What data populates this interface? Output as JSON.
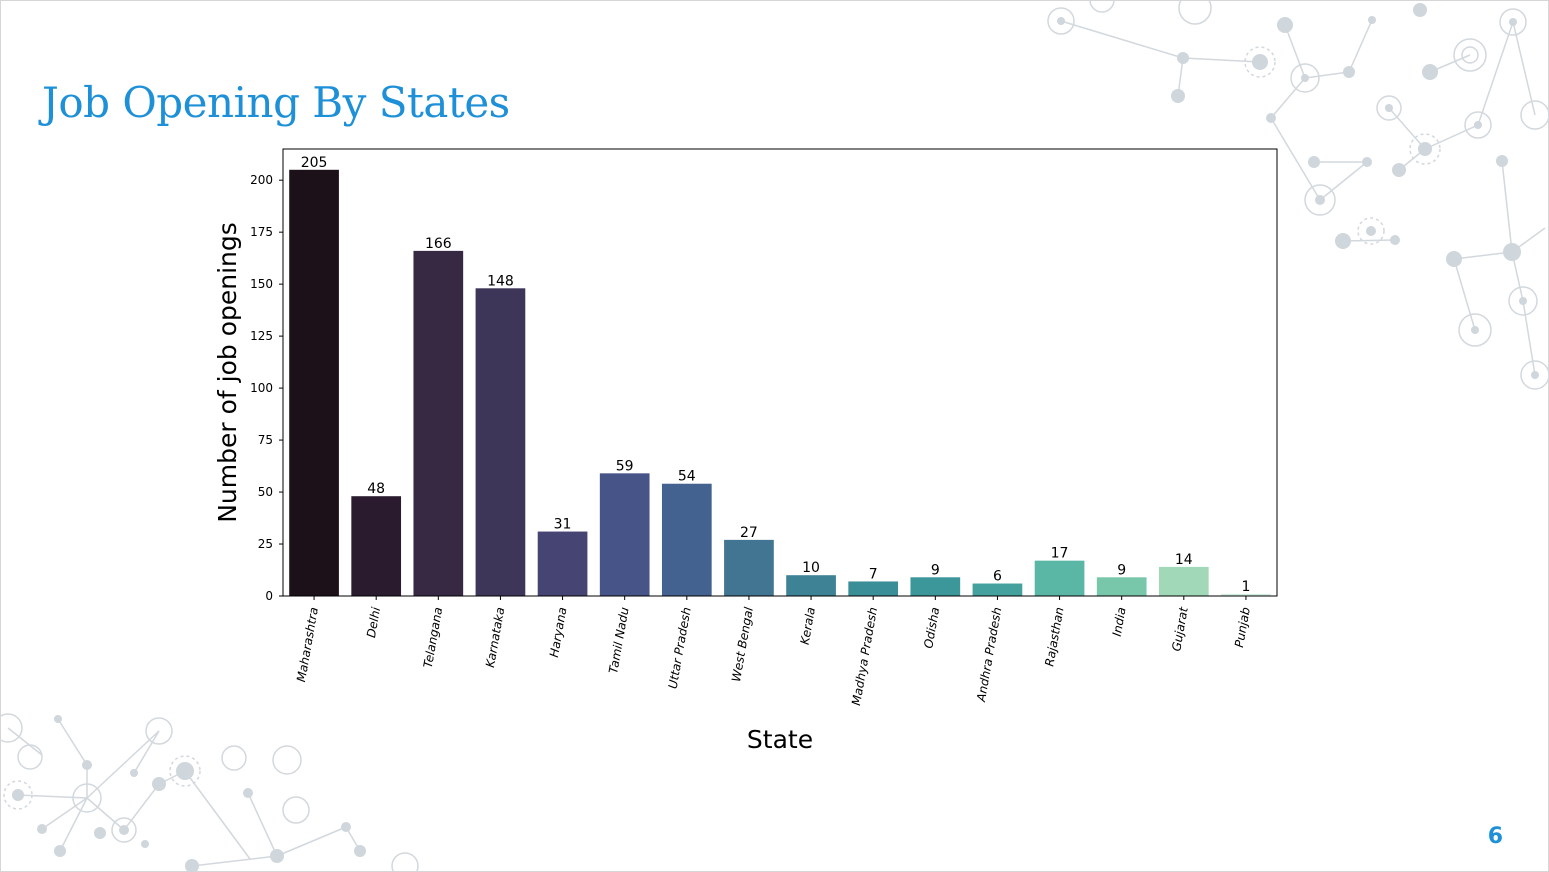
{
  "slide": {
    "title": "Job Opening By States",
    "page_number": "6"
  },
  "colors": {
    "title": "#1e90d8",
    "decor": "#cfd6dc"
  },
  "chart_data": {
    "type": "bar",
    "xlabel": "State",
    "ylabel": "Number of job openings",
    "ylim": [
      0,
      215
    ],
    "yticks": [
      0,
      25,
      50,
      75,
      100,
      125,
      150,
      175,
      200
    ],
    "categories": [
      "Maharashtra",
      "Delhi",
      "Telangana",
      "Karnataka",
      "Haryana",
      "Tamil Nadu",
      "Uttar Pradesh",
      "West Bengal",
      "Kerala",
      "Madhya Pradesh",
      "Odisha",
      "Andhra Pradesh",
      "Rajasthan",
      "India",
      "Gujarat",
      "Punjab"
    ],
    "values": [
      205,
      48,
      166,
      148,
      31,
      59,
      54,
      27,
      10,
      7,
      9,
      6,
      17,
      9,
      14,
      1
    ],
    "colors": [
      "#1c1118",
      "#2a1c2e",
      "#372843",
      "#3e3659",
      "#464473",
      "#475487",
      "#446290",
      "#427592",
      "#3d8395",
      "#3a8e98",
      "#3b979a",
      "#45a19d",
      "#5bb7a5",
      "#78c7ab",
      "#a1d8b8",
      "#d0eee0"
    ],
    "data_labels": true,
    "grid": false,
    "legend": "none"
  }
}
